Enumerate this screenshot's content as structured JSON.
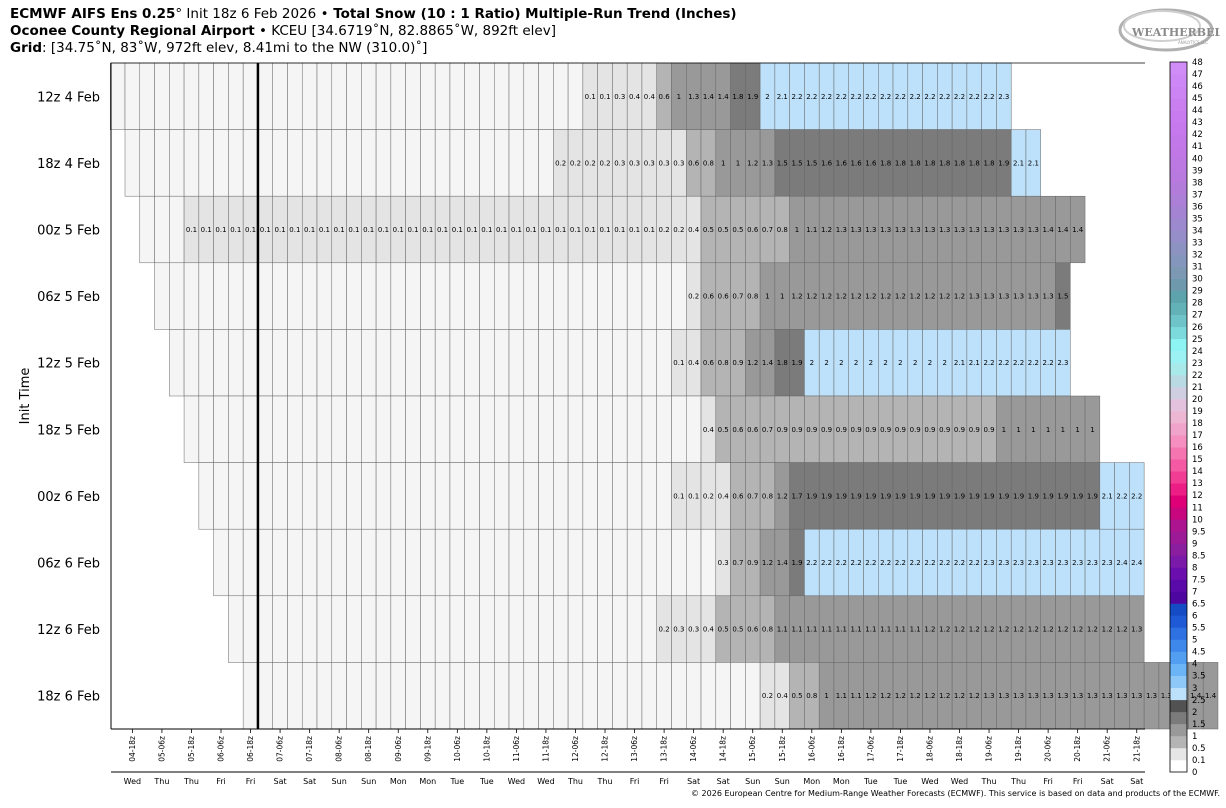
{
  "header": {
    "line1": {
      "model": "ECMWF AIFS Ens 0.25",
      "deg": "°",
      "init": " Init 18z 6 Feb 2026 ",
      "sep": "•",
      "product": " Total Snow (10 : 1 Ratio) Multiple-Run Trend (Inches)"
    },
    "line2": {
      "station": "Oconee County Regional Airport",
      "sep": " • ",
      "detail": "KCEU [34.6719˚N, 82.8865˚W, 892ft elev]"
    },
    "line3": {
      "label": "Grid",
      "detail": ": [34.75˚N, 83˚W, 972ft elev, 8.41mi to the NW (310.0)˚]"
    }
  },
  "logo": {
    "text_main": "WEATHERBELL",
    "text_sub": "ANALYTICS LLC"
  },
  "copyright": "© 2026 European Centre for Medium-Range Weather Forecasts (ECMWF). This service is based on data and products of the ECMWF.",
  "colors": {
    "c0": "#f5f5f5",
    "c01": "#e4e4e4",
    "c05": "#b4b4b4",
    "c1": "#999999",
    "c15": "#7b7b7b",
    "c2": "#bde1fa",
    "grid": "#666666",
    "now_line": "#000000"
  },
  "chart_data": {
    "type": "heatmap",
    "ylabel": "Init Time",
    "valid_times": [
      "04-18z",
      "05-00z",
      "05-06z",
      "05-12z",
      "05-18z",
      "06-00z",
      "06-06z",
      "06-12z",
      "06-18z",
      "07-00z",
      "07-06z",
      "07-12z",
      "07-18z",
      "08-00z",
      "08-06z",
      "08-12z",
      "08-18z",
      "09-00z",
      "09-06z",
      "09-12z",
      "09-18z",
      "10-00z",
      "10-06z",
      "10-12z",
      "10-18z",
      "11-00z",
      "11-06z",
      "11-12z",
      "11-18z",
      "12-00z",
      "12-06z",
      "12-12z",
      "12-18z",
      "13-00z",
      "13-06z",
      "13-12z",
      "13-18z",
      "14-00z",
      "14-06z",
      "14-12z",
      "14-18z",
      "15-00z",
      "15-06z",
      "15-12z",
      "15-18z",
      "16-00z",
      "16-06z",
      "16-12z",
      "16-18z",
      "17-00z",
      "17-06z",
      "17-12z",
      "17-18z",
      "18-00z",
      "18-06z",
      "18-12z",
      "18-18z",
      "19-00z",
      "19-06z",
      "19-12z",
      "19-18z",
      "20-00z",
      "20-06z",
      "20-12z",
      "20-18z",
      "21-00z",
      "21-06z",
      "21-12z",
      "21-18z"
    ],
    "x_tick_labels": [
      "04-18z",
      "05-06z",
      "05-18z",
      "06-06z",
      "06-18z",
      "07-06z",
      "07-18z",
      "08-06z",
      "08-18z",
      "09-06z",
      "09-18z",
      "10-06z",
      "10-18z",
      "11-06z",
      "11-18z",
      "12-06z",
      "12-18z",
      "13-06z",
      "13-18z",
      "14-06z",
      "14-18z",
      "15-06z",
      "15-18z",
      "16-06z",
      "16-18z",
      "17-06z",
      "17-18z",
      "18-06z",
      "18-18z",
      "19-06z",
      "19-18z",
      "20-06z",
      "20-18z",
      "21-06z",
      "21-18z"
    ],
    "x_day_labels": [
      "Wed",
      "Thu",
      "Thu",
      "Fri",
      "Fri",
      "Sat",
      "Sat",
      "Sun",
      "Sun",
      "Mon",
      "Mon",
      "Tue",
      "Tue",
      "Wed",
      "Wed",
      "Thu",
      "Thu",
      "Fri",
      "Fri",
      "Sat",
      "Sat",
      "Sun",
      "Sun",
      "Mon",
      "Mon",
      "Tue",
      "Tue",
      "Wed",
      "Wed",
      "Thu",
      "Thu",
      "Fri",
      "Fri",
      "Sat",
      "Sat"
    ],
    "current_time": "06-18z",
    "runs": [
      {
        "label": "12z 4 Feb",
        "start": "04-12z",
        "values": [
          0,
          0,
          0,
          0,
          0,
          0,
          0,
          0,
          0,
          0,
          0,
          0,
          0,
          0,
          0,
          0,
          0,
          0,
          0,
          0,
          0,
          0,
          0,
          0,
          0,
          0,
          0,
          0,
          0,
          0,
          0,
          0,
          0.1,
          0.1,
          0.3,
          0.4,
          0.4,
          0.6,
          1,
          1.3,
          1.4,
          1.4,
          1.8,
          1.9,
          2,
          2.1,
          2.2,
          2.2,
          2.2,
          2.2,
          2.2,
          2.2,
          2.2,
          2.2,
          2.2,
          2.2,
          2.2,
          2.2,
          2.2,
          2.2,
          2.3
        ]
      },
      {
        "label": "18z 4 Feb",
        "start": "04-18z",
        "values": [
          0,
          0,
          0,
          0,
          0,
          0,
          0,
          0,
          0,
          0,
          0,
          0,
          0,
          0,
          0,
          0,
          0,
          0,
          0,
          0,
          0,
          0,
          0,
          0,
          0,
          0,
          0,
          0,
          0,
          0.2,
          0.2,
          0.2,
          0.2,
          0.3,
          0.3,
          0.3,
          0.3,
          0.3,
          0.6,
          0.8,
          1,
          1,
          1.2,
          1.3,
          1.5,
          1.5,
          1.5,
          1.6,
          1.6,
          1.6,
          1.6,
          1.8,
          1.8,
          1.8,
          1.8,
          1.8,
          1.8,
          1.8,
          1.8,
          1.9,
          2.1,
          2.1
        ]
      },
      {
        "label": "00z 5 Feb",
        "start": "05-00z",
        "values": [
          0,
          0,
          0,
          0.1,
          0.1,
          0.1,
          0.1,
          0.1,
          0.1,
          0.1,
          0.1,
          0.1,
          0.1,
          0.1,
          0.1,
          0.1,
          0.1,
          0.1,
          0.1,
          0.1,
          0.1,
          0.1,
          0.1,
          0.1,
          0.1,
          0.1,
          0.1,
          0.1,
          0.1,
          0.1,
          0.1,
          0.1,
          0.1,
          0.1,
          0.1,
          0.2,
          0.2,
          0.4,
          0.5,
          0.5,
          0.5,
          0.6,
          0.7,
          0.8,
          1,
          1.1,
          1.2,
          1.3,
          1.3,
          1.3,
          1.3,
          1.3,
          1.3,
          1.3,
          1.3,
          1.3,
          1.3,
          1.3,
          1.3,
          1.3,
          1.3,
          1.4,
          1.4,
          1.4
        ]
      },
      {
        "label": "06z 5 Feb",
        "start": "05-06z",
        "values": [
          0,
          0,
          0,
          0,
          0,
          0,
          0,
          0,
          0,
          0,
          0,
          0,
          0,
          0,
          0,
          0,
          0,
          0,
          0,
          0,
          0,
          0,
          0,
          0,
          0,
          0,
          0,
          0,
          0,
          0,
          0,
          0,
          0,
          0,
          0,
          0,
          0.2,
          0.6,
          0.6,
          0.7,
          0.8,
          1,
          1,
          1.2,
          1.2,
          1.2,
          1.2,
          1.2,
          1.2,
          1.2,
          1.2,
          1.2,
          1.2,
          1.2,
          1.2,
          1.3,
          1.3,
          1.3,
          1.3,
          1.3,
          1.3,
          1.5
        ]
      },
      {
        "label": "12z 5 Feb",
        "start": "05-12z",
        "values": [
          0,
          0,
          0,
          0,
          0,
          0,
          0,
          0,
          0,
          0,
          0,
          0,
          0,
          0,
          0,
          0,
          0,
          0,
          0,
          0,
          0,
          0,
          0,
          0,
          0,
          0,
          0,
          0,
          0,
          0,
          0,
          0,
          0,
          0,
          0.1,
          0.4,
          0.6,
          0.8,
          0.9,
          1.2,
          1.4,
          1.8,
          1.9,
          2,
          2,
          2,
          2,
          2,
          2,
          2,
          2,
          2,
          2,
          2.1,
          2.1,
          2.2,
          2.2,
          2.2,
          2.2,
          2.2,
          2.3
        ]
      },
      {
        "label": "18z 5 Feb",
        "start": "05-18z",
        "values": [
          0,
          0,
          0,
          0,
          0,
          0,
          0,
          0,
          0,
          0,
          0,
          0,
          0,
          0,
          0,
          0,
          0,
          0,
          0,
          0,
          0,
          0,
          0,
          0,
          0,
          0,
          0,
          0,
          0,
          0,
          0,
          0,
          0,
          0,
          0,
          0.4,
          0.5,
          0.6,
          0.6,
          0.7,
          0.9,
          0.9,
          0.9,
          0.9,
          0.9,
          0.9,
          0.9,
          0.9,
          0.9,
          0.9,
          0.9,
          0.9,
          0.9,
          0.9,
          0.9,
          1,
          1,
          1,
          1,
          1,
          1,
          1
        ]
      },
      {
        "label": "00z 6 Feb",
        "start": "06-00z",
        "values": [
          0,
          0,
          0,
          0,
          0,
          0,
          0,
          0,
          0,
          0,
          0,
          0,
          0,
          0,
          0,
          0,
          0,
          0,
          0,
          0,
          0,
          0,
          0,
          0,
          0,
          0,
          0,
          0,
          0,
          0,
          0,
          0,
          0.1,
          0.1,
          0.2,
          0.4,
          0.6,
          0.7,
          0.8,
          1.2,
          1.7,
          1.9,
          1.9,
          1.9,
          1.9,
          1.9,
          1.9,
          1.9,
          1.9,
          1.9,
          1.9,
          1.9,
          1.9,
          1.9,
          1.9,
          1.9,
          1.9,
          1.9,
          1.9,
          1.9,
          1.9,
          2.1,
          2.2,
          2.2
        ]
      },
      {
        "label": "06z 6 Feb",
        "start": "06-06z",
        "values": [
          0,
          0,
          0,
          0,
          0,
          0,
          0,
          0,
          0,
          0,
          0,
          0,
          0,
          0,
          0,
          0,
          0,
          0,
          0,
          0,
          0,
          0,
          0,
          0,
          0,
          0,
          0,
          0,
          0,
          0,
          0,
          0,
          0,
          0,
          0.3,
          0.7,
          0.9,
          1.2,
          1.4,
          1.9,
          2.2,
          2.2,
          2.2,
          2.2,
          2.2,
          2.2,
          2.2,
          2.2,
          2.2,
          2.2,
          2.2,
          2.2,
          2.3,
          2.3,
          2.3,
          2.3,
          2.3,
          2.3,
          2.3,
          2.3,
          2.3,
          2.4,
          2.4
        ]
      },
      {
        "label": "12z 6 Feb",
        "start": "06-12z",
        "values": [
          0,
          0,
          0,
          0,
          0,
          0,
          0,
          0,
          0,
          0,
          0,
          0,
          0,
          0,
          0,
          0,
          0,
          0,
          0,
          0,
          0,
          0,
          0,
          0,
          0,
          0,
          0,
          0,
          0,
          0.2,
          0.3,
          0.3,
          0.4,
          0.5,
          0.5,
          0.6,
          0.8,
          1.1,
          1.1,
          1.1,
          1.1,
          1.1,
          1.1,
          1.1,
          1.1,
          1.1,
          1.1,
          1.2,
          1.2,
          1.2,
          1.2,
          1.2,
          1.2,
          1.2,
          1.2,
          1.2,
          1.2,
          1.2,
          1.2,
          1.2,
          1.2,
          1.3
        ]
      },
      {
        "label": "18z 6 Feb",
        "start": "06-18z",
        "values": [
          0,
          0,
          0,
          0,
          0,
          0,
          0,
          0,
          0,
          0,
          0,
          0,
          0,
          0,
          0,
          0,
          0,
          0,
          0,
          0,
          0,
          0,
          0,
          0,
          0,
          0,
          0,
          0,
          0,
          0,
          0,
          0,
          0,
          0,
          0,
          0.2,
          0.4,
          0.5,
          0.8,
          1,
          1.1,
          1.1,
          1.2,
          1.2,
          1.2,
          1.2,
          1.2,
          1.2,
          1.2,
          1.2,
          1.3,
          1.3,
          1.3,
          1.3,
          1.3,
          1.3,
          1.3,
          1.3,
          1.3,
          1.3,
          1.3,
          1.3,
          1.3,
          1.3,
          1.4,
          1.4
        ]
      }
    ],
    "colorbar": {
      "ticks": [
        "0",
        "0.1",
        "0.5",
        "1",
        "1.5",
        "2",
        "2.5",
        "3",
        "3.5",
        "4",
        "4.5",
        "5",
        "5.5",
        "6",
        "6.5",
        "7",
        "7.5",
        "8",
        "8.5",
        "9",
        "9.5",
        "10",
        "11",
        "12",
        "13",
        "14",
        "15",
        "16",
        "17",
        "18",
        "19",
        "20",
        "21",
        "22",
        "23",
        "24",
        "25",
        "26",
        "27",
        "28",
        "29",
        "30",
        "31",
        "32",
        "33",
        "34",
        "35",
        "36",
        "37",
        "38",
        "39",
        "40",
        "41",
        "42",
        "43",
        "44",
        "45",
        "46",
        "47",
        "48"
      ],
      "colors": [
        "#ffffff",
        "#e6e6e6",
        "#b4b4b4",
        "#999999",
        "#7b7b7b",
        "#525252",
        "#bde1fa",
        "#8dc8f8",
        "#6bb4f6",
        "#529ff2",
        "#3f88eb",
        "#2d71e2",
        "#1f5ad6",
        "#154bc4",
        "#4d069f",
        "#5a0aa8",
        "#6b0eae",
        "#7b1aa9",
        "#8b1d9f",
        "#9c1a95",
        "#ad1490",
        "#c8077f",
        "#df0077",
        "#ec1e86",
        "#f13d94",
        "#f45aa3",
        "#f575b1",
        "#f48fbf",
        "#f1a4cb",
        "#edb7d4",
        "#e2c2dc",
        "#d0cfe1",
        "#b9d9e3",
        "#a8eaea",
        "#9cf2f2",
        "#8df3f3",
        "#7cd9dc",
        "#6ec4c8",
        "#62b2b7",
        "#5ca3ac",
        "#6e98ab",
        "#7c98b3",
        "#8496bb",
        "#8c93c1",
        "#958ec8",
        "#9d89ce",
        "#a484d2",
        "#ab80d6",
        "#b27dda",
        "#b87ade",
        "#bc79e2",
        "#c078e6",
        "#c378ea",
        "#c579ed",
        "#c87bef",
        "#ca7ff1",
        "#cc83f3",
        "#ce88f5",
        "#d08cf7"
      ]
    }
  }
}
